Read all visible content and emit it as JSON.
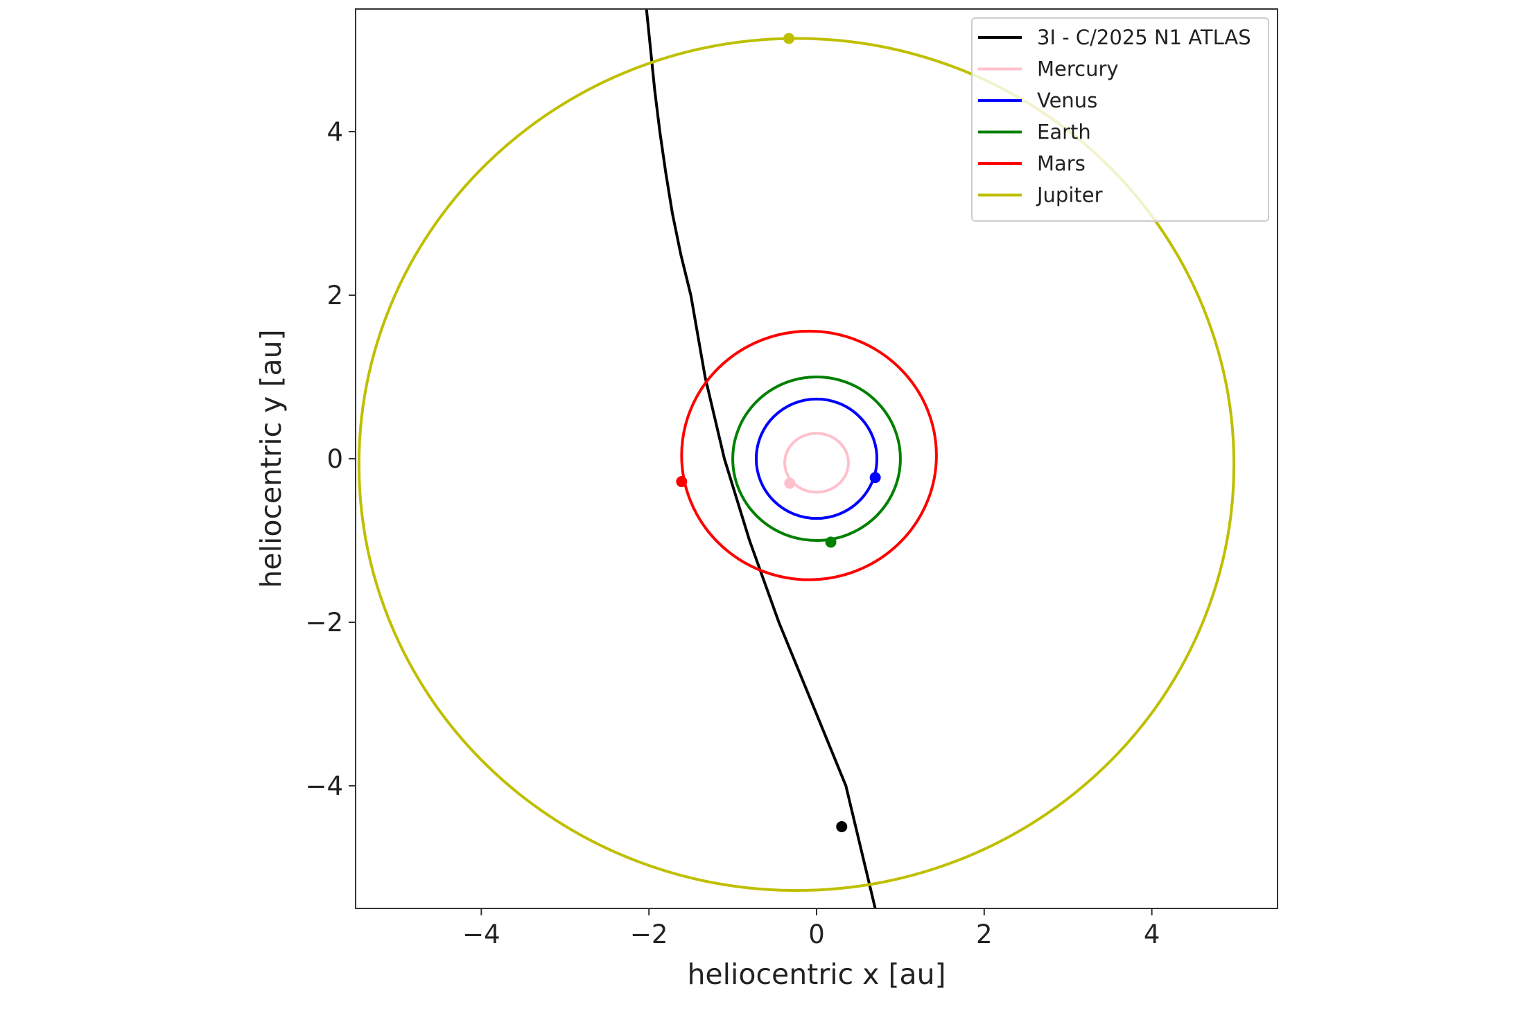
{
  "chart_data": {
    "type": "line",
    "title": "",
    "xlabel": "heliocentric x [au]",
    "ylabel": "heliocentric y [au]",
    "xlim": [
      -5.5,
      5.5
    ],
    "ylim": [
      -5.5,
      5.5
    ],
    "x_ticks": [
      -4,
      -2,
      0,
      2,
      4
    ],
    "y_ticks": [
      -4,
      -2,
      0,
      2,
      4
    ],
    "x_tick_labels": [
      "−4",
      "−2",
      "0",
      "2",
      "4"
    ],
    "y_tick_labels": [
      "−4",
      "−2",
      "0",
      "2",
      "4"
    ],
    "grid": false,
    "legend_position": "top-right",
    "series": [
      {
        "name": "3I - C/2025 N1 ATLAS",
        "color": "#000000",
        "kind": "trajectory",
        "x": [
          -2.03,
          -1.98,
          -1.93,
          -1.87,
          -1.8,
          -1.72,
          -1.62,
          -1.5,
          -1.33,
          -1.1,
          -0.8,
          -0.45,
          -0.05,
          0.35,
          0.7
        ],
        "y": [
          5.5,
          5.0,
          4.5,
          4.0,
          3.5,
          3.0,
          2.5,
          2.0,
          1.0,
          0.0,
          -1.0,
          -2.0,
          -3.0,
          -4.0,
          -5.5
        ],
        "marker": {
          "x": 0.3,
          "y": -4.5
        }
      },
      {
        "name": "Mercury",
        "color": "#ffc0cb",
        "kind": "orbit",
        "center": [
          0.0,
          -0.05
        ],
        "radii": [
          0.38,
          0.36
        ],
        "marker": {
          "x": -0.32,
          "y": -0.3
        }
      },
      {
        "name": "Venus",
        "color": "#0000ff",
        "kind": "orbit",
        "center": [
          0.0,
          0.0
        ],
        "radii": [
          0.72,
          0.73
        ],
        "marker": {
          "x": 0.7,
          "y": -0.23
        }
      },
      {
        "name": "Earth",
        "color": "#008000",
        "kind": "orbit",
        "center": [
          0.0,
          0.0
        ],
        "radii": [
          1.0,
          1.0
        ],
        "marker": {
          "x": 0.17,
          "y": -1.02
        }
      },
      {
        "name": "Mars",
        "color": "#ff0000",
        "kind": "orbit",
        "center": [
          -0.09,
          0.04
        ],
        "radii": [
          1.52,
          1.52
        ],
        "marker": {
          "x": -1.61,
          "y": -0.28
        }
      },
      {
        "name": "Jupiter",
        "color": "#bfbf00",
        "kind": "orbit",
        "center": [
          -0.24,
          -0.07
        ],
        "radii": [
          5.22,
          5.21
        ],
        "marker": {
          "x": -0.33,
          "y": 5.14
        }
      }
    ]
  }
}
